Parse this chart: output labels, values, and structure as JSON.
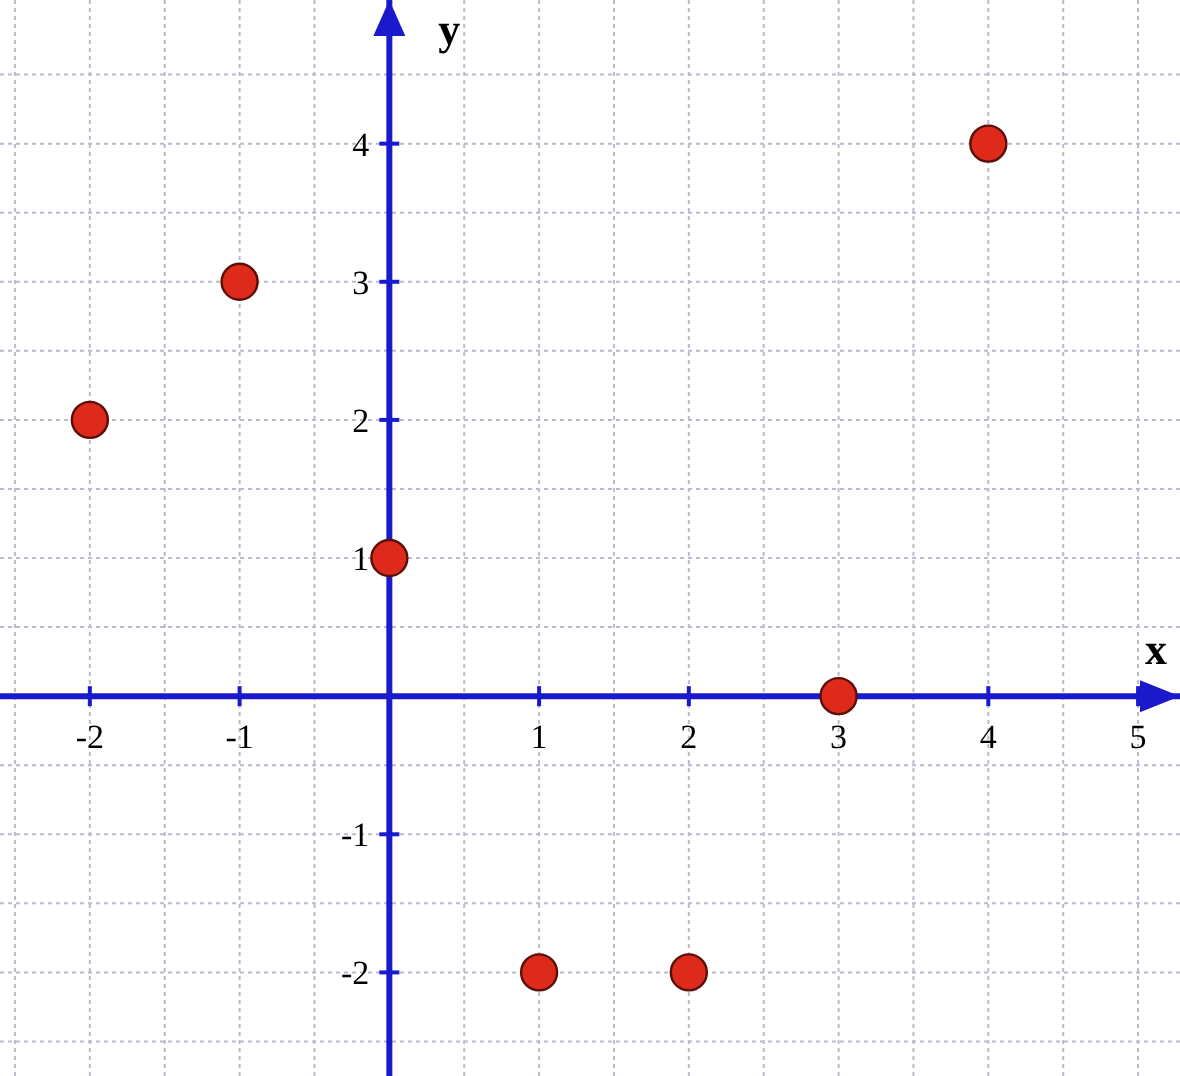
{
  "chart_data": {
    "type": "scatter",
    "xlabel": "x",
    "ylabel": "y",
    "x": [
      -2,
      -1,
      0,
      1,
      2,
      3,
      4
    ],
    "values": [
      2,
      3,
      1,
      -2,
      -2,
      0,
      4
    ],
    "color": "#dd2a1b",
    "marker": "circle",
    "grid": true,
    "xlim": [
      -2.6,
      5.28
    ],
    "ylim": [
      -2.75,
      5.04
    ],
    "xticks": [
      {
        "value": -2.5,
        "label": null
      },
      -2,
      {
        "value": -1.5,
        "label": null
      },
      -1,
      {
        "value": -0.5,
        "label": null
      },
      {
        "value": 0,
        "label": null
      },
      {
        "value": 0.5,
        "label": null
      },
      1,
      {
        "value": 1.5,
        "label": null
      },
      2,
      {
        "value": 2.5,
        "label": null
      },
      3,
      {
        "value": 3.5,
        "label": null
      },
      4,
      {
        "value": 4.5,
        "label": null
      },
      5
    ],
    "yticks": [
      {
        "value": -2.5,
        "label": null
      },
      -2,
      {
        "value": -1.5,
        "label": null
      },
      -1,
      {
        "value": -0.5,
        "label": null
      },
      {
        "value": 0,
        "label": null
      },
      {
        "value": 0.5,
        "label": null
      },
      1,
      {
        "value": 1.5,
        "label": null
      },
      2,
      {
        "value": 2.5,
        "label": null
      },
      3,
      {
        "value": 3.5,
        "label": null
      },
      4,
      {
        "value": 4.5,
        "label": null
      }
    ]
  }
}
